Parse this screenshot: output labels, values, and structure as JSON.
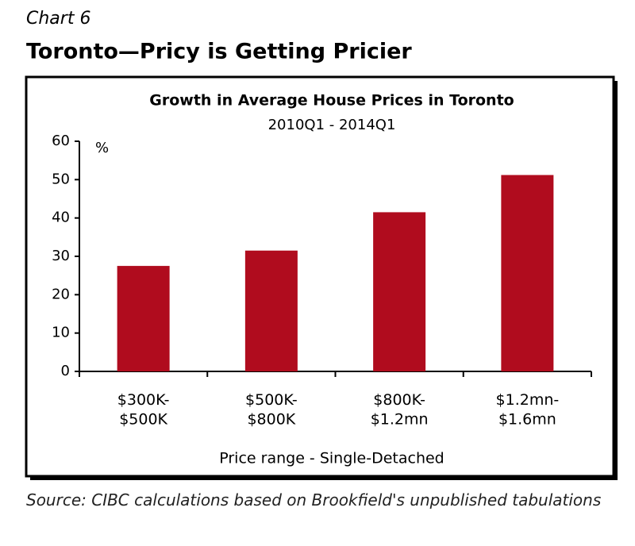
{
  "header": {
    "label": "Chart 6",
    "title": "Toronto—Pricy is Getting Pricier"
  },
  "chart_data": {
    "type": "bar",
    "title": "Growth in Average House Prices in Toronto",
    "subtitle": "2010Q1 - 2014Q1",
    "y_unit": "%",
    "x_label": "Price range - Single-Detached",
    "categories": [
      "$300K-\n$500K",
      "$500K-\n$800K",
      "$800K-\n$1.2mn",
      "$1.2mn-\n$1.6mn"
    ],
    "values": [
      27.5,
      31.5,
      41.5,
      51.2
    ],
    "color": "#b00c1e",
    "ylim": [
      0,
      60
    ],
    "yticks": [
      0,
      10,
      20,
      30,
      40,
      50,
      60
    ],
    "grid": false
  },
  "source": "Source: CIBC calculations based on Brookfield's unpublished tabulations"
}
